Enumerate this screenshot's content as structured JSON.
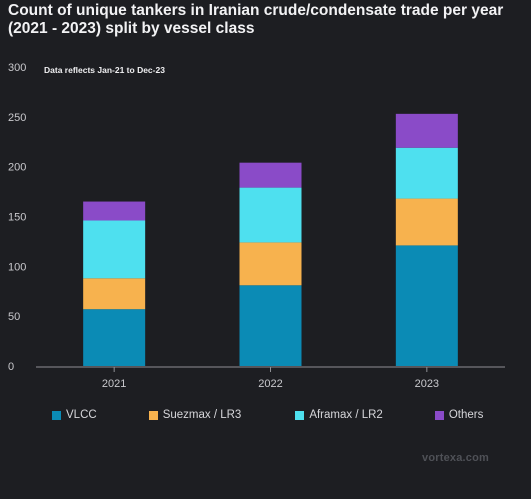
{
  "chart_data": {
    "type": "bar",
    "stacked": true,
    "title": "Count of unique tankers in Iranian crude/condensate trade per year (2021 - 2023) split by vessel class",
    "annotation": "Data reflects Jan-21 to Dec-23",
    "categories": [
      "2021",
      "2022",
      "2023"
    ],
    "ylim": [
      0,
      300
    ],
    "yticks": [
      0,
      50,
      100,
      150,
      200,
      250,
      300
    ],
    "grid": false,
    "legend_position": "bottom",
    "series": [
      {
        "name": "VLCC",
        "color": "#0b8bb5",
        "values": [
          57,
          81,
          121
        ]
      },
      {
        "name": "Suezmax / LR3",
        "color": "#f7b24e",
        "values": [
          31,
          43,
          47
        ]
      },
      {
        "name": "Aframax / LR2",
        "color": "#4ee0ef",
        "values": [
          58,
          55,
          51
        ]
      },
      {
        "name": "Others",
        "color": "#8a4bc8",
        "values": [
          19,
          25,
          34
        ]
      }
    ]
  },
  "watermark": "vortexa.com"
}
